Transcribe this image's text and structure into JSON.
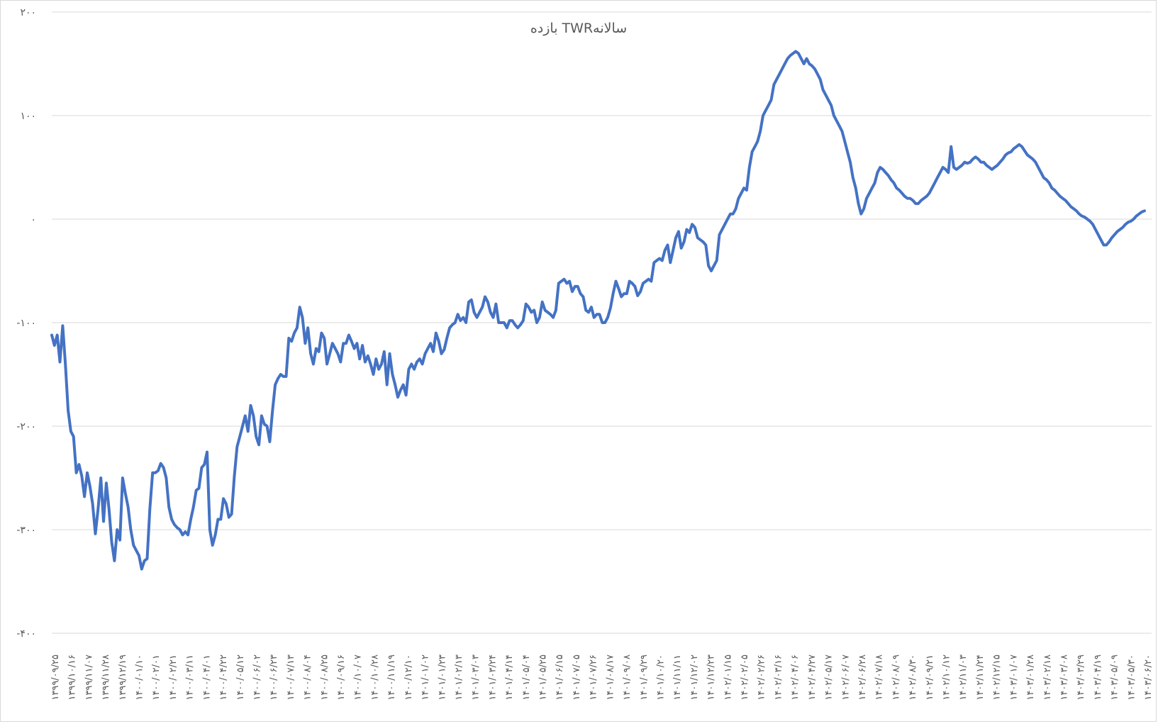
{
  "chart_data": {
    "type": "line",
    "title": "بازده TWRسالانه",
    "ylim": [
      -400,
      200
    ],
    "yticks": [
      200,
      100,
      0,
      -100,
      -200,
      -300,
      -400
    ],
    "ytick_labels": [
      "۲۰۰",
      "۱۰۰",
      "۰",
      "-۱۰۰",
      "-۲۰۰",
      "-۳۰۰",
      "-۴۰۰"
    ],
    "grid": true,
    "legend": "none",
    "line_color": "#4472c4",
    "gridline_color": "#d9d9d9",
    "x_labels": [
      "۱۳۹۹/۰۹/۲۵",
      "۱۳۹۹/۱۰/۱۶",
      "۱۳۹۹/۱۱/۰۷",
      "۱۳۹۹/۱۱/۲۸",
      "۱۳۹۹/۱۲/۱۹",
      "۱۴۰۰/۰۱/۱۰",
      "۱۴۰۰/۰۲/۰۱",
      "۱۴۰۰/۰۲/۲۱",
      "۱۴۰۰/۰۳/۱۱",
      "۱۴۰۰/۰۴/۰۱",
      "۱۴۰۰/۰۴/۲۲",
      "۱۴۰۰/۰۵/۱۲",
      "۱۴۰۰/۰۶/۰۲",
      "۱۴۰۰/۰۶/۲۳",
      "۱۴۰۰/۰۷/۱۳",
      "۱۴۰۰/۰۸/۰۴",
      "۱۴۰۰/۰۸/۲۵",
      "۱۴۰۰/۰۹/۱۶",
      "۱۴۰۰/۱۰/۰۷",
      "۱۴۰۰/۱۰/۲۸",
      "۱۴۰۰/۱۱/۱۹",
      "۱۴۰۰/۱۲/۱۰",
      "۱۴۰۱/۰۱/۰۲",
      "۱۴۰۱/۰۱/۲۳",
      "۱۴۰۱/۰۲/۱۳",
      "۱۴۰۱/۰۳/۰۳",
      "۱۴۰۱/۰۳/۲۴",
      "۱۴۰۱/۰۴/۱۴",
      "۱۴۰۱/۰۵/۰۴",
      "۱۴۰۱/۰۵/۲۵",
      "۱۴۰۱/۰۶/۱۵",
      "۱۴۰۱/۰۷/۰۵",
      "۱۴۰۱/۰۷/۲۶",
      "۱۴۰۱/۰۸/۱۷",
      "۱۴۰۱/۰۹/۰۸",
      "۱۴۰۱/۰۹/۲۹",
      "۱۴۰۱/۱۰/۲۰",
      "۱۴۰۱/۱۱/۱۱",
      "۱۴۰۱/۱۲/۰۲",
      "۱۴۰۱/۱۲/۲۳",
      "۱۴۰۲/۰۱/۱۵",
      "۱۴۰۲/۰۲/۰۵",
      "۱۴۰۲/۰۲/۲۶",
      "۱۴۰۲/۰۳/۱۶",
      "۱۴۰۲/۰۴/۰۶",
      "۱۴۰۲/۰۴/۲۷",
      "۱۴۰۲/۰۵/۱۷",
      "۱۴۰۲/۰۶/۰۷",
      "۱۴۰۲/۰۶/۲۸",
      "۱۴۰۲/۰۷/۱۸",
      "۱۴۰۲/۰۸/۰۹",
      "۱۴۰۲/۰۸/۳۰",
      "۱۴۰۲/۰۹/۲۱",
      "۱۴۰۲/۱۰/۱۲",
      "۱۴۰۲/۱۱/۰۳",
      "۱۴۰۲/۱۱/۲۴",
      "۱۴۰۲/۱۲/۱۵",
      "۱۴۰۳/۰۱/۰۷",
      "۱۴۰۳/۰۱/۲۸",
      "۱۴۰۳/۰۲/۱۸",
      "۱۴۰۳/۰۳/۰۸",
      "۱۴۰۳/۰۳/۲۹",
      "۱۴۰۳/۰۴/۱۹",
      "۱۴۰۳/۰۵/۰۹",
      "۱۴۰۳/۰۵/۳۰",
      "۱۴۰۳/۰۶/۲۰"
    ],
    "series": [
      {
        "values": [
          -112,
          -122,
          -112,
          -138,
          -103,
          -140,
          -185,
          -205,
          -210,
          -245,
          -237,
          -248,
          -268,
          -245,
          -258,
          -275,
          -304,
          -280,
          -250,
          -292,
          -255,
          -280,
          -312,
          -330,
          -300,
          -310,
          -250,
          -265,
          -278,
          -300,
          -315,
          -320,
          -325,
          -338,
          -330,
          -328,
          -280,
          -245,
          -245,
          -243,
          -236,
          -240,
          -250,
          -278,
          -290,
          -295,
          -298,
          -300,
          -305,
          -302,
          -305,
          -290,
          -278,
          -262,
          -260,
          -240,
          -237,
          -225,
          -300,
          -315,
          -305,
          -290,
          -290,
          -270,
          -275,
          -288,
          -285,
          -248,
          -220,
          -210,
          -200,
          -190,
          -205,
          -180,
          -190,
          -210,
          -218,
          -190,
          -198,
          -200,
          -215,
          -185,
          -160,
          -154,
          -150,
          -152,
          -152,
          -115,
          -118,
          -110,
          -105,
          -85,
          -95,
          -120,
          -105,
          -130,
          -140,
          -125,
          -128,
          -110,
          -115,
          -140,
          -130,
          -120,
          -125,
          -130,
          -138,
          -120,
          -120,
          -112,
          -118,
          -125,
          -120,
          -135,
          -122,
          -138,
          -132,
          -140,
          -150,
          -135,
          -145,
          -140,
          -128,
          -160,
          -130,
          -150,
          -160,
          -172,
          -165,
          -160,
          -170,
          -145,
          -140,
          -145,
          -138,
          -135,
          -140,
          -130,
          -125,
          -120,
          -128,
          -110,
          -118,
          -130,
          -126,
          -115,
          -105,
          -102,
          -100,
          -92,
          -98,
          -95,
          -100,
          -80,
          -78,
          -90,
          -95,
          -90,
          -85,
          -75,
          -80,
          -90,
          -95,
          -82,
          -100,
          -100,
          -100,
          -105,
          -98,
          -98,
          -102,
          -105,
          -102,
          -98,
          -82,
          -85,
          -90,
          -88,
          -100,
          -95,
          -80,
          -88,
          -90,
          -92,
          -95,
          -88,
          -62,
          -60,
          -58,
          -62,
          -60,
          -70,
          -65,
          -65,
          -72,
          -75,
          -88,
          -90,
          -85,
          -95,
          -92,
          -92,
          -100,
          -100,
          -95,
          -86,
          -72,
          -60,
          -67,
          -75,
          -72,
          -72,
          -60,
          -62,
          -65,
          -74,
          -70,
          -62,
          -60,
          -58,
          -60,
          -42,
          -40,
          -38,
          -40,
          -30,
          -25,
          -42,
          -30,
          -18,
          -12,
          -28,
          -22,
          -10,
          -13,
          -5,
          -8,
          -18,
          -20,
          -22,
          -25,
          -45,
          -50,
          -45,
          -40,
          -15,
          -10,
          -5,
          0,
          5,
          5,
          10,
          20,
          25,
          30,
          28,
          50,
          65,
          70,
          75,
          85,
          100,
          105,
          110,
          115,
          130,
          135,
          140,
          145,
          150,
          155,
          158,
          160,
          162,
          160,
          155,
          150,
          155,
          150,
          148,
          145,
          140,
          135,
          125,
          120,
          115,
          110,
          100,
          95,
          90,
          85,
          75,
          65,
          55,
          40,
          30,
          15,
          5,
          10,
          20,
          25,
          30,
          35,
          45,
          50,
          48,
          45,
          42,
          38,
          35,
          30,
          28,
          25,
          22,
          20,
          20,
          18,
          15,
          15,
          18,
          20,
          22,
          25,
          30,
          35,
          40,
          45,
          50,
          48,
          45,
          70,
          50,
          48,
          50,
          52,
          55,
          54,
          55,
          58,
          60,
          58,
          55,
          55,
          52,
          50,
          48,
          50,
          52,
          55,
          58,
          62,
          64,
          65,
          68,
          70,
          72,
          70,
          66,
          62,
          60,
          58,
          55,
          50,
          45,
          40,
          38,
          35,
          30,
          28,
          25,
          22,
          20,
          18,
          15,
          12,
          10,
          8,
          5,
          3,
          2,
          0,
          -2,
          -5,
          -10,
          -15,
          -20,
          -25,
          -25,
          -22,
          -18,
          -15,
          -12,
          -10,
          -8,
          -5,
          -3,
          -2,
          0,
          3,
          5,
          7,
          8
        ]
      }
    ]
  }
}
